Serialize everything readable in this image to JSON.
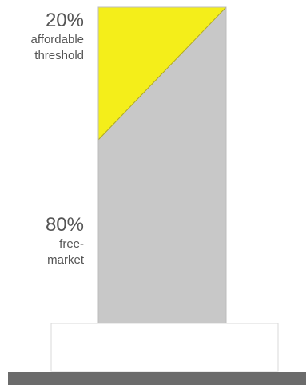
{
  "labels": {
    "affordable": {
      "percent": "20%",
      "line1": "affordable",
      "line2": "threshold"
    },
    "market": {
      "percent": "80%",
      "line1": "free-",
      "line2": "market"
    }
  },
  "shares": {
    "affordable": 0.2,
    "market": 0.8
  },
  "colors": {
    "affordable": "#f4ee1a",
    "market": "#c8c8c8",
    "podium_fill": "#ffffff",
    "podium_stroke": "#d9d9d9",
    "ground": "#6b6b6b",
    "text": "#555555"
  }
}
